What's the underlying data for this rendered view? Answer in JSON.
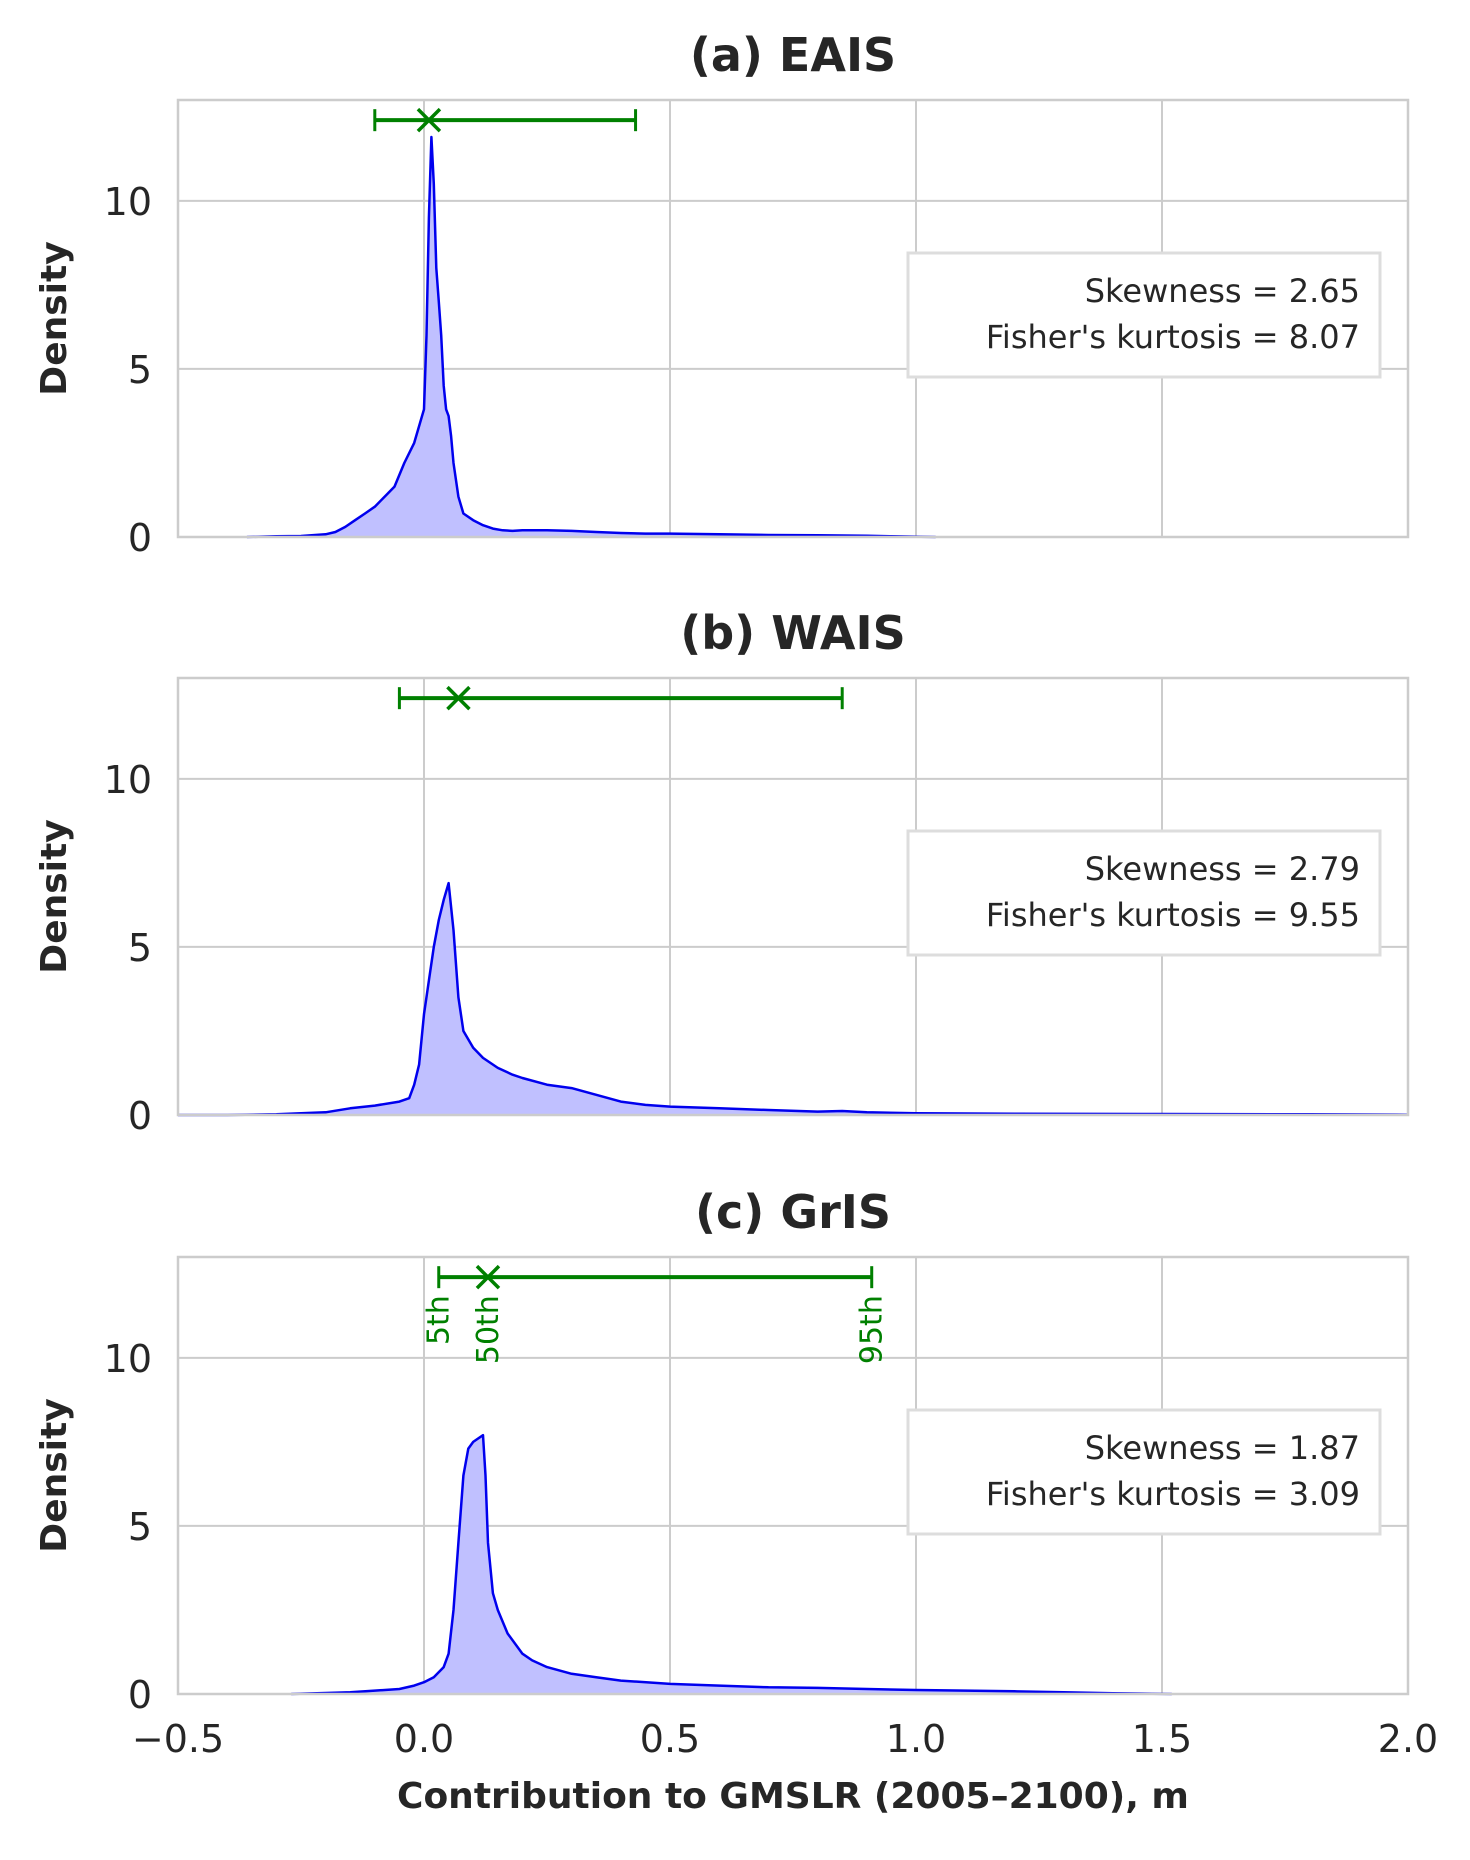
{
  "chart_data": {
    "type": "area",
    "xlabel": "Contribution to GMSLR (2005–2100), m",
    "xlim": [
      -0.5,
      2.0
    ],
    "xticks": [
      "−0.5",
      "0.0",
      "0.5",
      "1.0",
      "1.5",
      "2.0"
    ],
    "xtick_values": [
      -0.5,
      0.0,
      0.5,
      1.0,
      1.5,
      2.0
    ],
    "ylim": [
      0,
      13
    ],
    "yticks": [
      "0",
      "5",
      "10"
    ],
    "ytick_values": [
      0,
      5,
      10
    ],
    "grid": true,
    "colors": {
      "line": "#0000ee",
      "fill": "#c0c0ff",
      "interval": "#008000",
      "grid": "#cccccc",
      "frame": "#cccccc"
    },
    "panels": [
      {
        "title": "(a) EAIS",
        "ylabel": "Density",
        "stats": [
          "Skewness = 2.65",
          "Fisher's kurtosis = 8.07"
        ],
        "interval": {
          "y": 12.4,
          "p5": -0.1,
          "p50": 0.01,
          "p95": 0.43
        },
        "x": [
          -0.36,
          -0.3,
          -0.25,
          -0.2,
          -0.18,
          -0.16,
          -0.14,
          -0.12,
          -0.1,
          -0.08,
          -0.06,
          -0.04,
          -0.02,
          0.0,
          0.005,
          0.01,
          0.015,
          0.02,
          0.025,
          0.03,
          0.035,
          0.04,
          0.045,
          0.05,
          0.055,
          0.06,
          0.07,
          0.08,
          0.1,
          0.12,
          0.14,
          0.16,
          0.18,
          0.2,
          0.25,
          0.3,
          0.35,
          0.4,
          0.45,
          0.5,
          0.6,
          0.7,
          0.8,
          0.9,
          0.95,
          1.04
        ],
        "y": [
          0.0,
          0.02,
          0.03,
          0.08,
          0.15,
          0.3,
          0.5,
          0.7,
          0.9,
          1.2,
          1.5,
          2.2,
          2.8,
          3.8,
          6.0,
          9.5,
          11.9,
          10.5,
          8.0,
          7.0,
          6.0,
          4.5,
          3.8,
          3.6,
          3.0,
          2.2,
          1.2,
          0.7,
          0.5,
          0.35,
          0.25,
          0.2,
          0.18,
          0.2,
          0.2,
          0.18,
          0.15,
          0.12,
          0.1,
          0.1,
          0.08,
          0.06,
          0.05,
          0.04,
          0.02,
          0.0
        ]
      },
      {
        "title": "(b) WAIS",
        "ylabel": "Density",
        "stats": [
          "Skewness = 2.79",
          "Fisher's kurtosis = 9.55"
        ],
        "interval": {
          "y": 12.4,
          "p5": -0.05,
          "p50": 0.07,
          "p95": 0.85
        },
        "x": [
          -0.5,
          -0.4,
          -0.3,
          -0.2,
          -0.15,
          -0.1,
          -0.05,
          -0.03,
          -0.02,
          -0.01,
          0.0,
          0.01,
          0.02,
          0.03,
          0.04,
          0.05,
          0.06,
          0.07,
          0.08,
          0.1,
          0.12,
          0.15,
          0.18,
          0.2,
          0.25,
          0.3,
          0.35,
          0.4,
          0.45,
          0.5,
          0.6,
          0.7,
          0.8,
          0.85,
          0.9,
          1.0,
          1.2,
          1.5,
          1.8,
          2.0
        ],
        "y": [
          0.0,
          0.0,
          0.02,
          0.08,
          0.2,
          0.28,
          0.4,
          0.5,
          0.9,
          1.5,
          3.0,
          4.0,
          5.0,
          5.8,
          6.4,
          6.9,
          5.5,
          3.5,
          2.5,
          2.0,
          1.7,
          1.4,
          1.2,
          1.1,
          0.9,
          0.8,
          0.6,
          0.4,
          0.3,
          0.25,
          0.2,
          0.15,
          0.1,
          0.12,
          0.08,
          0.05,
          0.04,
          0.03,
          0.02,
          0.01
        ]
      },
      {
        "title": "(c) GrIS",
        "ylabel": "Density",
        "stats": [
          "Skewness = 1.87",
          "Fisher's kurtosis = 3.09"
        ],
        "interval": {
          "y": 12.4,
          "p5": 0.03,
          "p50": 0.13,
          "p95": 0.91
        },
        "percentile_labels": [
          "5th",
          "50th",
          "95th"
        ],
        "x": [
          -0.27,
          -0.2,
          -0.15,
          -0.1,
          -0.05,
          -0.02,
          0.0,
          0.02,
          0.04,
          0.05,
          0.06,
          0.07,
          0.08,
          0.09,
          0.1,
          0.11,
          0.12,
          0.125,
          0.13,
          0.14,
          0.15,
          0.17,
          0.2,
          0.22,
          0.25,
          0.3,
          0.35,
          0.4,
          0.5,
          0.6,
          0.7,
          0.8,
          0.9,
          1.0,
          1.1,
          1.2,
          1.3,
          1.4,
          1.52
        ],
        "y": [
          0.0,
          0.03,
          0.05,
          0.1,
          0.15,
          0.25,
          0.35,
          0.5,
          0.8,
          1.2,
          2.5,
          4.5,
          6.5,
          7.3,
          7.5,
          7.6,
          7.7,
          6.5,
          4.5,
          3.0,
          2.5,
          1.8,
          1.2,
          1.0,
          0.8,
          0.6,
          0.5,
          0.4,
          0.3,
          0.25,
          0.2,
          0.18,
          0.15,
          0.12,
          0.1,
          0.08,
          0.05,
          0.02,
          0.0
        ]
      }
    ]
  }
}
